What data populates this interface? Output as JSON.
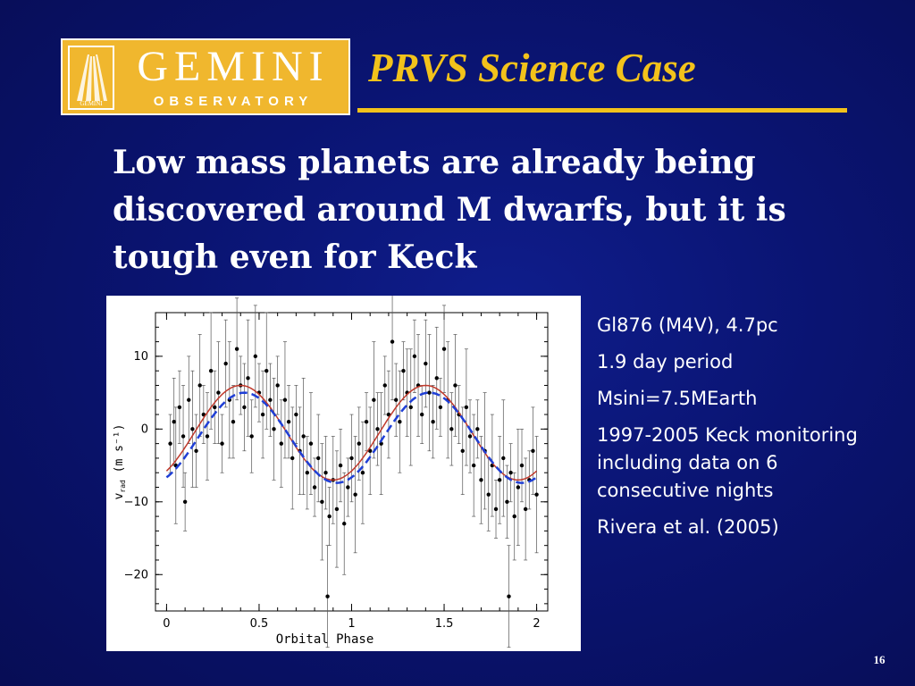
{
  "logo": {
    "main": "GEMINI",
    "sub": "OBSERVATORY",
    "emblem_label": "GEMINI"
  },
  "slide": {
    "title": "PRVS Science Case",
    "headline": "Low mass planets are already being discovered around M dwarfs, but it is tough even for Keck",
    "notes": [
      "Gl876 (M4V), 4.7pc",
      "1.9 day period",
      "Msini=7.5MEarth",
      "1997-2005 Keck monitoring including data on 6 consecutive nights",
      "Rivera et al. (2005)"
    ],
    "page_number": "16"
  },
  "chart_data": {
    "type": "scatter",
    "xlabel": "Orbital Phase",
    "ylabel": "v",
    "ylabel_sub": "rad",
    "ylabel_unit": "(m s⁻¹)",
    "xlim": [
      -0.06,
      2.06
    ],
    "ylim": [
      -25,
      16
    ],
    "x_ticks": [
      0,
      0.5,
      1,
      1.5,
      2
    ],
    "x_tick_labels": [
      "0",
      "0.5",
      "1",
      "1.5",
      "2"
    ],
    "y_ticks": [
      10,
      0,
      -10,
      -20
    ],
    "y_tick_labels": [
      "10",
      "0",
      "−10",
      "−20"
    ],
    "series": [
      {
        "style": "points-with-errorbars",
        "color": "#000000",
        "points": [
          [
            0.02,
            -2
          ],
          [
            0.04,
            1
          ],
          [
            0.05,
            -5
          ],
          [
            0.07,
            3
          ],
          [
            0.09,
            -1
          ],
          [
            0.1,
            -10
          ],
          [
            0.12,
            4
          ],
          [
            0.14,
            0
          ],
          [
            0.16,
            -3
          ],
          [
            0.18,
            6
          ],
          [
            0.2,
            2
          ],
          [
            0.22,
            -1
          ],
          [
            0.24,
            8
          ],
          [
            0.26,
            3
          ],
          [
            0.28,
            5
          ],
          [
            0.3,
            -2
          ],
          [
            0.32,
            9
          ],
          [
            0.34,
            4
          ],
          [
            0.36,
            1
          ],
          [
            0.38,
            11
          ],
          [
            0.4,
            6
          ],
          [
            0.42,
            3
          ],
          [
            0.44,
            7
          ],
          [
            0.46,
            -1
          ],
          [
            0.48,
            10
          ],
          [
            0.5,
            5
          ],
          [
            0.52,
            2
          ],
          [
            0.54,
            8
          ],
          [
            0.56,
            4
          ],
          [
            0.58,
            0
          ],
          [
            0.6,
            6
          ],
          [
            0.62,
            -2
          ],
          [
            0.64,
            4
          ],
          [
            0.66,
            1
          ],
          [
            0.68,
            -4
          ],
          [
            0.7,
            2
          ],
          [
            0.72,
            -3
          ],
          [
            0.74,
            -1
          ],
          [
            0.76,
            -6
          ],
          [
            0.78,
            -2
          ],
          [
            0.8,
            -8
          ],
          [
            0.82,
            -4
          ],
          [
            0.84,
            -10
          ],
          [
            0.86,
            -6
          ],
          [
            0.87,
            -23
          ],
          [
            0.88,
            -12
          ],
          [
            0.9,
            -7
          ],
          [
            0.92,
            -11
          ],
          [
            0.94,
            -5
          ],
          [
            0.96,
            -13
          ],
          [
            0.98,
            -8
          ],
          [
            1.0,
            -4
          ],
          [
            1.02,
            -9
          ],
          [
            1.04,
            -2
          ],
          [
            1.06,
            -6
          ],
          [
            1.08,
            1
          ],
          [
            1.1,
            -3
          ],
          [
            1.12,
            4
          ],
          [
            1.14,
            0
          ],
          [
            1.16,
            -2
          ],
          [
            1.18,
            6
          ],
          [
            1.2,
            2
          ],
          [
            1.22,
            12
          ],
          [
            1.24,
            4
          ],
          [
            1.26,
            1
          ],
          [
            1.28,
            8
          ],
          [
            1.3,
            5
          ],
          [
            1.32,
            3
          ],
          [
            1.34,
            10
          ],
          [
            1.36,
            6
          ],
          [
            1.38,
            2
          ],
          [
            1.4,
            9
          ],
          [
            1.42,
            5
          ],
          [
            1.44,
            1
          ],
          [
            1.46,
            7
          ],
          [
            1.48,
            3
          ],
          [
            1.5,
            11
          ],
          [
            1.52,
            4
          ],
          [
            1.54,
            0
          ],
          [
            1.56,
            6
          ],
          [
            1.58,
            2
          ],
          [
            1.6,
            -3
          ],
          [
            1.62,
            3
          ],
          [
            1.64,
            -1
          ],
          [
            1.66,
            -5
          ],
          [
            1.68,
            0
          ],
          [
            1.7,
            -7
          ],
          [
            1.72,
            -3
          ],
          [
            1.74,
            -9
          ],
          [
            1.76,
            -5
          ],
          [
            1.78,
            -11
          ],
          [
            1.8,
            -7
          ],
          [
            1.82,
            -4
          ],
          [
            1.84,
            -10
          ],
          [
            1.85,
            -23
          ],
          [
            1.86,
            -6
          ],
          [
            1.88,
            -12
          ],
          [
            1.9,
            -8
          ],
          [
            1.92,
            -5
          ],
          [
            1.94,
            -11
          ],
          [
            1.96,
            -7
          ],
          [
            1.98,
            -3
          ],
          [
            2.0,
            -9
          ]
        ]
      },
      {
        "style": "fit-solid",
        "color": "#c0392b",
        "amplitude": 6.5,
        "offset": -0.5,
        "phase_of_peak": 0.4
      },
      {
        "style": "fit-dashed",
        "color": "#1f3fd6",
        "amplitude": 6.2,
        "offset": -1.2,
        "phase_of_peak": 0.42
      }
    ]
  }
}
